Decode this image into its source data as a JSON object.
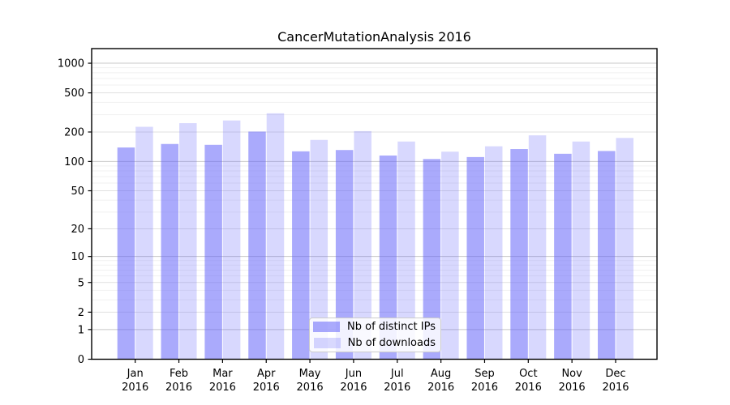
{
  "chart_data": {
    "type": "bar",
    "title": "CancerMutationAnalysis 2016",
    "categories": [
      "Jan",
      "Feb",
      "Mar",
      "Apr",
      "May",
      "Jun",
      "Jul",
      "Aug",
      "Sep",
      "Oct",
      "Nov",
      "Dec"
    ],
    "category_year": "2016",
    "series": [
      {
        "name": "Nb of distinct IPs",
        "color": "rgba(100,100,250,0.55)",
        "color_hex_on_white": "#aaaaf6",
        "values": [
          139,
          151,
          148,
          202,
          127,
          131,
          115,
          106,
          111,
          134,
          120,
          128
        ]
      },
      {
        "name": "Nb of downloads",
        "color": "rgba(100,100,250,0.25)",
        "color_hex_on_white": "#d8d8fb",
        "values": [
          226,
          246,
          262,
          310,
          166,
          204,
          160,
          126,
          143,
          185,
          160,
          174
        ]
      }
    ],
    "y_axis": {
      "scale": "log1p",
      "ticks": [
        0,
        1,
        2,
        5,
        10,
        20,
        50,
        100,
        200,
        500,
        1000
      ],
      "ylim": [
        0,
        1410
      ]
    },
    "xlabel": "",
    "ylabel": "",
    "grid": "on",
    "legend_position": "lower-center"
  }
}
